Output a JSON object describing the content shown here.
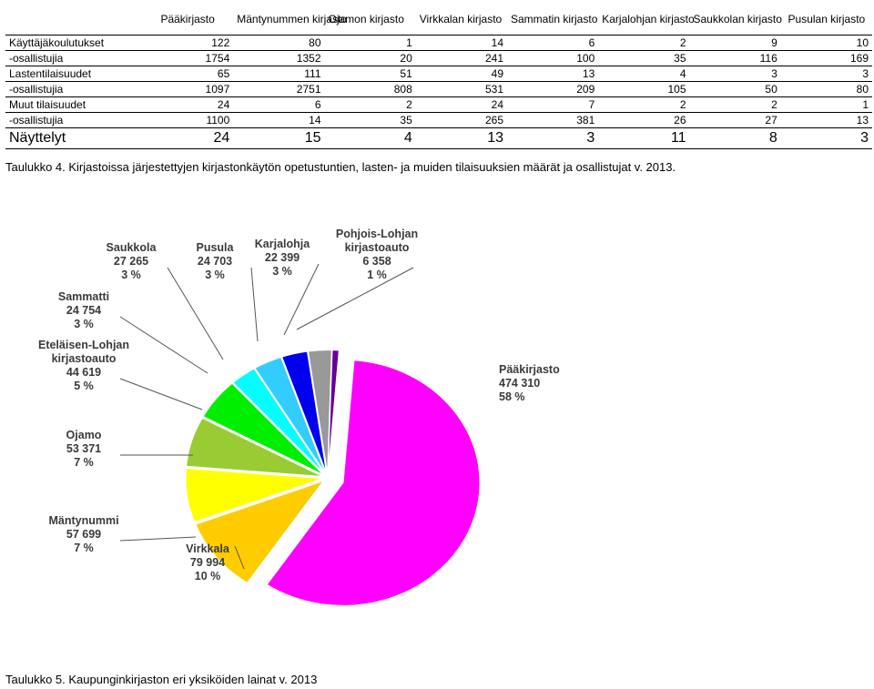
{
  "table": {
    "headers": [
      "",
      "Pääkirjasto",
      "Mäntynummen kirjasto",
      "Ojamon kirjasto",
      "Virkkalan kirjasto",
      "Sammatin kirjasto",
      "Karjalohjan kirjasto",
      "Saukkolan kirjasto",
      "Pusulan kirjasto"
    ],
    "rows": [
      {
        "label": "Käyttäjäkoulutukset",
        "values": [
          "122",
          "80",
          "1",
          "14",
          "6",
          "2",
          "9",
          "10"
        ]
      },
      {
        "label": "-osallistujia",
        "values": [
          "1754",
          "1352",
          "20",
          "241",
          "100",
          "35",
          "116",
          "169"
        ]
      },
      {
        "label": "Lastentilaisuudet",
        "values": [
          "65",
          "111",
          "51",
          "49",
          "13",
          "4",
          "3",
          "3"
        ]
      },
      {
        "label": "-osallistujia",
        "values": [
          "1097",
          "2751",
          "808",
          "531",
          "209",
          "105",
          "50",
          "80"
        ]
      },
      {
        "label": "Muut tilaisuudet",
        "values": [
          "24",
          "6",
          "2",
          "24",
          "7",
          "2",
          "2",
          "1"
        ]
      },
      {
        "label": "-osallistujia",
        "values": [
          "1100",
          "14",
          "35",
          "265",
          "381",
          "26",
          "27",
          "13"
        ]
      },
      {
        "label": "Näyttelyt",
        "values": [
          "24",
          "15",
          "4",
          "13",
          "3",
          "11",
          "8",
          "3"
        ]
      }
    ]
  },
  "captions": {
    "table4": "Taulukko 4. Kirjastoissa järjestettyjen kirjastonkäytön opetustuntien, lasten- ja muiden tilaisuuksien määrät ja osallistujat v. 2013.",
    "table5": "Taulukko 5. Kaupunginkirjaston eri yksiköiden lainat v. 2013"
  },
  "chart_data": {
    "type": "pie",
    "title": "",
    "series": [
      {
        "name": "Pääkirjasto",
        "value": 474310,
        "percent": "58 %",
        "color": "#ff00ff",
        "label_lines": [
          "Pääkirjasto",
          "474 310",
          "58 %"
        ]
      },
      {
        "name": "Virkkala",
        "value": 79994,
        "percent": "10 %",
        "color": "#ffcc00",
        "label_lines": [
          "Virkkala",
          "79 994",
          "10 %"
        ]
      },
      {
        "name": "Mäntynummi",
        "value": 57699,
        "percent": "7 %",
        "color": "#ffff00",
        "label_lines": [
          "Mäntynummi",
          "57 699",
          "7 %"
        ]
      },
      {
        "name": "Ojamo",
        "value": 53371,
        "percent": "7 %",
        "color": "#99cc33",
        "label_lines": [
          "Ojamo",
          "53 371",
          "7 %"
        ]
      },
      {
        "name": "Eteläisen-Lohjan kirjastoauto",
        "value": 44619,
        "percent": "5 %",
        "color": "#00ee00",
        "label_lines": [
          "Eteläisen-Lohjan",
          "kirjastoauto",
          "44 619",
          "5 %"
        ]
      },
      {
        "name": "Sammatti",
        "value": 24754,
        "percent": "3 %",
        "color": "#00ffff",
        "label_lines": [
          "Sammatti",
          "24 754",
          "3 %"
        ]
      },
      {
        "name": "Saukkola",
        "value": 27265,
        "percent": "3 %",
        "color": "#33ccff",
        "label_lines": [
          "Saukkola",
          "27 265",
          "3 %"
        ]
      },
      {
        "name": "Pusula",
        "value": 24703,
        "percent": "3 %",
        "color": "#0000ee",
        "label_lines": [
          "Pusula",
          "24 703",
          "3 %"
        ]
      },
      {
        "name": "Karjalohja",
        "value": 22399,
        "percent": "3 %",
        "color": "#999999",
        "label_lines": [
          "Karjalohja",
          "22 399",
          "3 %"
        ]
      },
      {
        "name": "Pohjois-Lohjan kirjastoauto",
        "value": 6358,
        "percent": "1 %",
        "color": "#660099",
        "label_lines": [
          "Pohjois-Lohjan",
          "kirjastoauto",
          "6 358",
          "1 %"
        ]
      }
    ]
  }
}
